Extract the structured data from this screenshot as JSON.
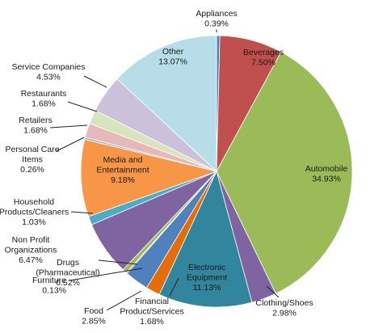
{
  "chart_data": {
    "type": "pie",
    "title": "",
    "start_angle_deg": 0,
    "direction": "clockwise",
    "slices": [
      {
        "label": "Appliances",
        "value": 0.39,
        "value_text": "0.39%",
        "color": "#4f81bd"
      },
      {
        "label": "Beverages",
        "value": 7.5,
        "value_text": "7.50%",
        "color": "#c0504d"
      },
      {
        "label": "Automobile",
        "value": 34.93,
        "value_text": "34.93%",
        "color": "#9bbb59"
      },
      {
        "label": "Clothing/Shoes",
        "value": 2.98,
        "value_text": "2.98%",
        "color": "#8064a2"
      },
      {
        "label": "Electronic Equipment",
        "value": 11.13,
        "value_text": "11.13%",
        "color": "#31859c"
      },
      {
        "label": "Financial Product/Services",
        "value": 1.68,
        "value_text": "1.68%",
        "color": "#e46c0a"
      },
      {
        "label": "Food",
        "value": 2.85,
        "value_text": "2.85%",
        "color": "#4f81bd"
      },
      {
        "label": "Furniture",
        "value": 0.13,
        "value_text": "0.13%",
        "color": "#c0504d"
      },
      {
        "label": "Drugs (Pharmaceutical)",
        "value": 0.52,
        "value_text": "0.52%",
        "color": "#9bbb59"
      },
      {
        "label": "Non Profit Organizations",
        "value": 6.47,
        "value_text": "6.47%",
        "color": "#8064a2"
      },
      {
        "label": "Household Products/Cleaners",
        "value": 1.03,
        "value_text": "1.03%",
        "color": "#4bacc6"
      },
      {
        "label": "Media and Entertainment",
        "value": 9.18,
        "value_text": "9.18%",
        "color": "#f79646"
      },
      {
        "label": "Personal Care Items",
        "value": 0.26,
        "value_text": "0.26%",
        "color": "#95b3d7"
      },
      {
        "label": "Retailers",
        "value": 1.68,
        "value_text": "1.68%",
        "color": "#e6b9b8"
      },
      {
        "label": "Restaurants",
        "value": 1.68,
        "value_text": "1.68%",
        "color": "#d7e4bd"
      },
      {
        "label": "Service Companies",
        "value": 4.53,
        "value_text": "4.53%",
        "color": "#ccc1da"
      },
      {
        "label": "Other",
        "value": 13.07,
        "value_text": "13.07%",
        "color": "#b7dee8"
      }
    ]
  }
}
